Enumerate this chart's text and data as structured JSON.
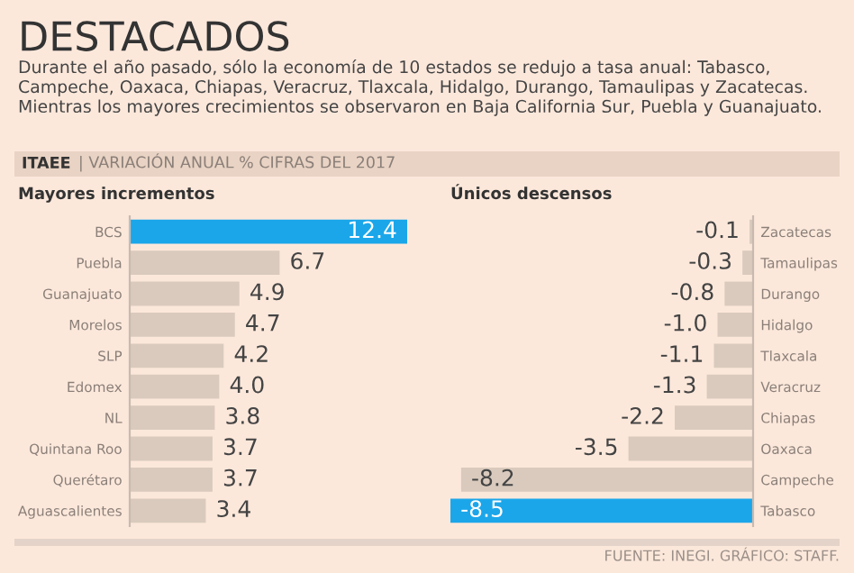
{
  "chart_data": [
    {
      "type": "other",
      "title": "DESTACADOS",
      "subtitle": "Durante el año pasado, sólo la economía de 10 estados se redujo a tasa anual: Tabasco, Campeche, Oaxaca, Chiapas, Veracruz, Tlaxcala, Hidalgo, Durango, Tamaulipas y Zacatecas. Mientras los mayores crecimientos se observaron en Baja California Sur, Puebla y Guanajuato.",
      "annotations": [
        "ITAEE",
        "| VARIACIÓN ANUAL % CIFRAS DEL 2017",
        "FUENTE: INEGI. GRÁFICO: STAFF."
      ]
    },
    {
      "type": "bar",
      "orientation": "horizontal",
      "title": "Mayores incrementos",
      "value_labels": [
        "12.4",
        "6.7",
        "4.9",
        "4.7",
        "4.2",
        "4.0",
        "3.8",
        "3.7",
        "3.7",
        "3.4"
      ],
      "categories": [
        "BCS",
        "Puebla",
        "Guanajuato",
        "Morelos",
        "SLP",
        "Edomex",
        "NL",
        "Quintana Roo",
        "Querétaro",
        "Aguascalientes"
      ],
      "values": [
        12.4,
        6.7,
        4.9,
        4.7,
        4.2,
        4.0,
        3.8,
        3.7,
        3.7,
        3.4
      ],
      "colors": [
        "#1ba6ea",
        "#d9cabd",
        "#d9cabd",
        "#d9cabd",
        "#d9cabd",
        "#d9cabd",
        "#d9cabd",
        "#d9cabd",
        "#d9cabd",
        "#d9cabd"
      ]
    },
    {
      "type": "bar",
      "orientation": "horizontal",
      "title": "Únicos descensos",
      "value_labels": [
        "-0.1",
        "-0.3",
        "-0.8",
        "-1.0",
        "-1.1",
        "-1.3",
        "-2.2",
        "-3.5",
        "-8.2",
        "-8.5"
      ],
      "categories": [
        "Zacatecas",
        "Tamaulipas",
        "Durango",
        "Hidalgo",
        "Tlaxcala",
        "Veracruz",
        "Chiapas",
        "Oaxaca",
        "Campeche",
        "Tabasco"
      ],
      "values": [
        -0.1,
        -0.3,
        -0.8,
        -1.0,
        -1.1,
        -1.3,
        -2.2,
        -3.5,
        -8.2,
        -8.5
      ],
      "colors": [
        "#d9cabd",
        "#d9cabd",
        "#d9cabd",
        "#d9cabd",
        "#d9cabd",
        "#d9cabd",
        "#d9cabd",
        "#d9cabd",
        "#d9cabd",
        "#1ba6ea"
      ]
    }
  ]
}
